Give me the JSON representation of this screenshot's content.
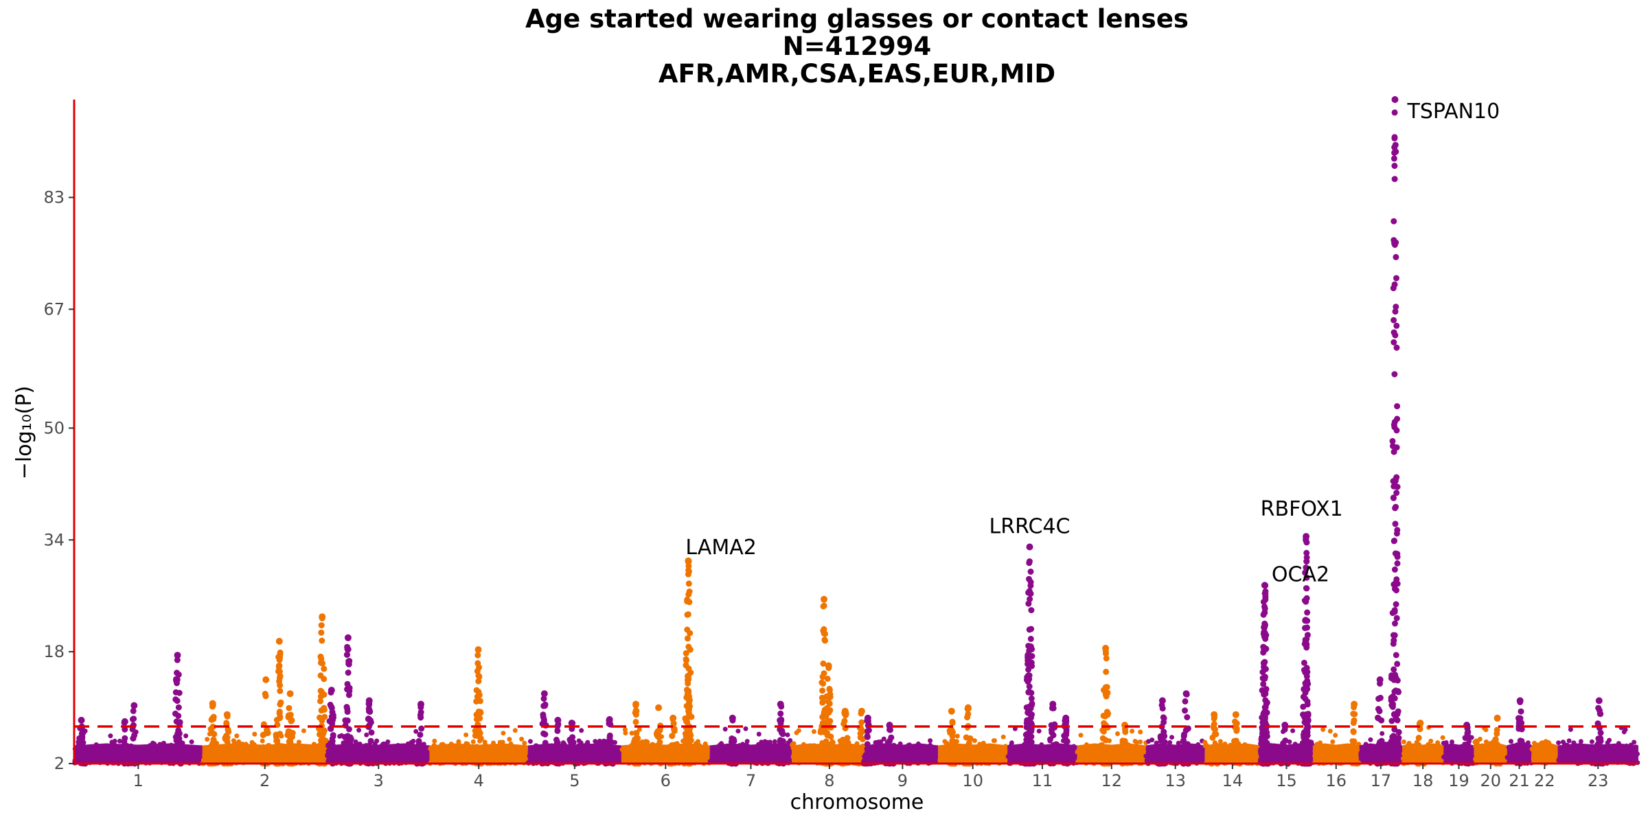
{
  "chart_data": {
    "type": "scatter",
    "subtype": "manhattan",
    "title": "Age started wearing glasses or contact lenses",
    "subtitle_n": "N=412994",
    "subtitle_pops": "AFR,AMR,CSA,EAS,EUR,MID",
    "xlabel": "chromosome",
    "ylabel": "−log₁₀(P)",
    "y_ticks": [
      2,
      18,
      34,
      50,
      67,
      83
    ],
    "ylim": [
      2,
      97
    ],
    "significance_line": 7.3,
    "colors": {
      "odd": "#8B0A8B",
      "even": "#F07400",
      "axis": "#E00000",
      "threshold": "#E00000"
    },
    "chromosomes": [
      {
        "label": "1",
        "len": 248
      },
      {
        "label": "2",
        "len": 242
      },
      {
        "label": "3",
        "len": 198
      },
      {
        "label": "4",
        "len": 190
      },
      {
        "label": "5",
        "len": 181
      },
      {
        "label": "6",
        "len": 171
      },
      {
        "label": "7",
        "len": 159
      },
      {
        "label": "8",
        "len": 145
      },
      {
        "label": "9",
        "len": 138
      },
      {
        "label": "10",
        "len": 134
      },
      {
        "label": "11",
        "len": 135
      },
      {
        "label": "12",
        "len": 133
      },
      {
        "label": "13",
        "len": 114
      },
      {
        "label": "14",
        "len": 107
      },
      {
        "label": "15",
        "len": 102
      },
      {
        "label": "16",
        "len": 90
      },
      {
        "label": "17",
        "len": 83
      },
      {
        "label": "18",
        "len": 80
      },
      {
        "label": "19",
        "len": 59
      },
      {
        "label": "20",
        "len": 64
      },
      {
        "label": "21",
        "len": 47
      },
      {
        "label": "22",
        "len": 51
      },
      {
        "label": "23",
        "len": 156
      }
    ],
    "peaks": [
      {
        "chr": 1,
        "pos": 14,
        "max": 8.2
      },
      {
        "chr": 1,
        "pos": 98,
        "max": 8
      },
      {
        "chr": 1,
        "pos": 116,
        "max": 10.3
      },
      {
        "chr": 1,
        "pos": 200,
        "max": 17.5
      },
      {
        "chr": 2,
        "pos": 20,
        "max": 10.6
      },
      {
        "chr": 2,
        "pos": 48,
        "max": 9
      },
      {
        "chr": 2,
        "pos": 123,
        "max": 14
      },
      {
        "chr": 2,
        "pos": 149,
        "max": 19.5
      },
      {
        "chr": 2,
        "pos": 170,
        "max": 12
      },
      {
        "chr": 2,
        "pos": 232,
        "max": 23
      },
      {
        "chr": 3,
        "pos": 8,
        "max": 12.5
      },
      {
        "chr": 3,
        "pos": 40,
        "max": 20
      },
      {
        "chr": 3,
        "pos": 81,
        "max": 11
      },
      {
        "chr": 3,
        "pos": 181,
        "max": 10.5
      },
      {
        "chr": 4,
        "pos": 94,
        "max": 18.3
      },
      {
        "chr": 5,
        "pos": 32,
        "max": 12
      },
      {
        "chr": 5,
        "pos": 58,
        "max": 8.2
      },
      {
        "chr": 5,
        "pos": 85,
        "max": 7.8
      },
      {
        "chr": 5,
        "pos": 158,
        "max": 8.3
      },
      {
        "chr": 6,
        "pos": 28,
        "max": 10.5
      },
      {
        "chr": 6,
        "pos": 72,
        "max": 10
      },
      {
        "chr": 6,
        "pos": 100,
        "max": 8.5
      },
      {
        "chr": 6,
        "pos": 129,
        "max": 14.5
      },
      {
        "chr": 6,
        "pos": 129.5,
        "max": 31
      },
      {
        "chr": 7,
        "pos": 44,
        "max": 8.5
      },
      {
        "chr": 7,
        "pos": 137,
        "max": 10.5
      },
      {
        "chr": 8,
        "pos": 62,
        "max": 25.5
      },
      {
        "chr": 8,
        "pos": 71,
        "max": 16
      },
      {
        "chr": 8,
        "pos": 103,
        "max": 9.5
      },
      {
        "chr": 8,
        "pos": 135,
        "max": 9.5
      },
      {
        "chr": 9,
        "pos": 2,
        "max": 8.5
      },
      {
        "chr": 9,
        "pos": 44,
        "max": 7.5
      },
      {
        "chr": 10,
        "pos": 26,
        "max": 9.5
      },
      {
        "chr": 10,
        "pos": 58,
        "max": 10
      },
      {
        "chr": 11,
        "pos": 40,
        "max": 17.5
      },
      {
        "chr": 11,
        "pos": 43,
        "max": 33
      },
      {
        "chr": 11,
        "pos": 88,
        "max": 10.5
      },
      {
        "chr": 11,
        "pos": 113,
        "max": 8.5
      },
      {
        "chr": 12,
        "pos": 55,
        "max": 18.5
      },
      {
        "chr": 12,
        "pos": 92,
        "max": 7.5
      },
      {
        "chr": 13,
        "pos": 32,
        "max": 11
      },
      {
        "chr": 13,
        "pos": 78,
        "max": 12
      },
      {
        "chr": 14,
        "pos": 18,
        "max": 9
      },
      {
        "chr": 14,
        "pos": 60,
        "max": 9
      },
      {
        "chr": 15,
        "pos": 8,
        "max": 21.5
      },
      {
        "chr": 15,
        "pos": 9,
        "max": 27.5
      },
      {
        "chr": 15,
        "pos": 48,
        "max": 7.5
      },
      {
        "chr": 15,
        "pos": 88,
        "max": 22.5
      },
      {
        "chr": 15,
        "pos": 89,
        "max": 34.5
      },
      {
        "chr": 16,
        "pos": 80,
        "max": 10.5
      },
      {
        "chr": 17,
        "pos": 40,
        "max": 14
      },
      {
        "chr": 17,
        "pos": 69,
        "max": 97
      },
      {
        "chr": 18,
        "pos": 35,
        "max": 7.8
      },
      {
        "chr": 19,
        "pos": 45,
        "max": 7.5
      },
      {
        "chr": 20,
        "pos": 45,
        "max": 8.5
      },
      {
        "chr": 21,
        "pos": 25,
        "max": 11
      },
      {
        "chr": 23,
        "pos": 80,
        "max": 11
      }
    ],
    "annotations": [
      {
        "label": "TSPAN10",
        "chr": 17,
        "pos": 69,
        "y": 97
      },
      {
        "label": "LAMA2",
        "chr": 6,
        "pos": 129.5,
        "y": 31
      },
      {
        "label": "LRRC4C",
        "chr": 11,
        "pos": 43,
        "y": 33
      },
      {
        "label": "RBFOX1",
        "chr": 16,
        "pos": 5,
        "y": 34.5
      },
      {
        "label": "OCA2",
        "chr": 15,
        "pos": 9,
        "y": 27.5
      }
    ]
  }
}
